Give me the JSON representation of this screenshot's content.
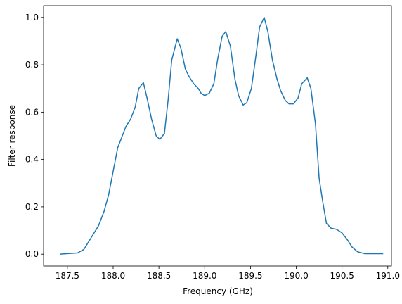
{
  "chart_data": {
    "type": "line",
    "xlabel": "Frequency (GHz)",
    "ylabel": "Filter response",
    "x": [
      187.42,
      187.61,
      187.68,
      187.76,
      187.84,
      187.9,
      187.95,
      188.01,
      188.05,
      188.1,
      188.14,
      188.19,
      188.24,
      188.28,
      188.33,
      188.37,
      188.42,
      188.47,
      188.51,
      188.56,
      188.6,
      188.64,
      188.7,
      188.74,
      188.79,
      188.83,
      188.88,
      188.93,
      188.96,
      189.0,
      189.05,
      189.1,
      189.14,
      189.19,
      189.23,
      189.28,
      189.33,
      189.37,
      189.42,
      189.46,
      189.51,
      189.56,
      189.6,
      189.65,
      189.69,
      189.74,
      189.79,
      189.83,
      189.88,
      189.92,
      189.97,
      190.02,
      190.06,
      190.12,
      190.16,
      190.21,
      190.25,
      190.29,
      190.33,
      190.38,
      190.44,
      190.5,
      190.56,
      190.61,
      190.67,
      190.75,
      190.88,
      190.95
    ],
    "series": [
      {
        "color": "#1f77b4",
        "values": [
          0.0,
          0.005,
          0.02,
          0.07,
          0.12,
          0.18,
          0.25,
          0.37,
          0.45,
          0.5,
          0.54,
          0.57,
          0.62,
          0.7,
          0.725,
          0.66,
          0.57,
          0.5,
          0.485,
          0.51,
          0.65,
          0.82,
          0.91,
          0.87,
          0.78,
          0.75,
          0.72,
          0.7,
          0.68,
          0.67,
          0.68,
          0.72,
          0.82,
          0.92,
          0.94,
          0.88,
          0.74,
          0.67,
          0.63,
          0.64,
          0.7,
          0.84,
          0.96,
          1.0,
          0.94,
          0.82,
          0.74,
          0.69,
          0.65,
          0.635,
          0.635,
          0.66,
          0.72,
          0.745,
          0.7,
          0.55,
          0.32,
          0.22,
          0.13,
          0.11,
          0.105,
          0.09,
          0.06,
          0.03,
          0.01,
          0.002,
          0.002,
          0.002
        ]
      }
    ],
    "xlim": [
      187.24,
      191.04
    ],
    "ylim": [
      -0.05,
      1.05
    ],
    "xticks": [
      187.5,
      {
        "value": 188,
        "label": "188.0"
      },
      188.5,
      {
        "value": 189,
        "label": "189.0"
      },
      189.5,
      {
        "value": 190,
        "label": "190.0"
      },
      190.5,
      {
        "value": 191,
        "label": "191.0"
      }
    ],
    "yticks": [
      {
        "value": 0,
        "label": "0.0"
      },
      0.2,
      0.4,
      0.6,
      0.8,
      {
        "value": 1,
        "label": "1.0"
      }
    ],
    "grid": false
  }
}
